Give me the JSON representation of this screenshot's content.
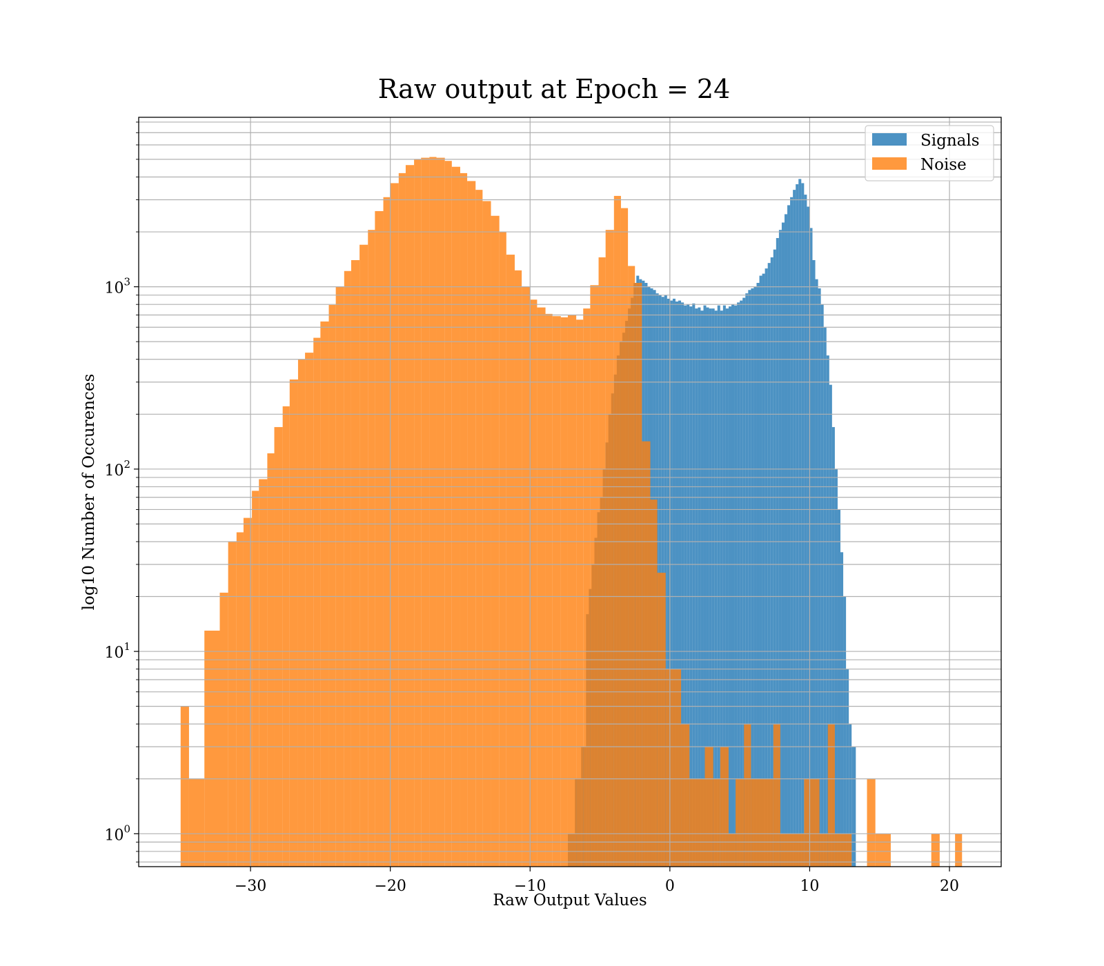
{
  "chart_data": {
    "type": "bar",
    "title": "Raw output at Epoch = 24",
    "xlabel": "Raw Output Values",
    "ylabel": "log10 Number of Occurences",
    "xlim": [
      -38,
      23.7
    ],
    "ylim": [
      0.66,
      8500
    ],
    "yscale": "log",
    "grid": true,
    "legend_position": "top-right",
    "x_ticks": [
      {
        "value": -30,
        "label": "−30"
      },
      {
        "value": -20,
        "label": "−20"
      },
      {
        "value": -10,
        "label": "−10"
      },
      {
        "value": 0,
        "label": "0"
      },
      {
        "value": 10,
        "label": "10"
      },
      {
        "value": 20,
        "label": "20"
      }
    ],
    "y_ticks": [
      {
        "value": 1,
        "base": "10",
        "exp": "0"
      },
      {
        "value": 10,
        "base": "10",
        "exp": "1"
      },
      {
        "value": 100,
        "base": "10",
        "exp": "2"
      },
      {
        "value": 1000,
        "base": "10",
        "exp": "3"
      }
    ],
    "series": [
      {
        "name": "Signals",
        "color": "#1f77b4",
        "alpha": 0.8,
        "bins": [
          [
            -7.3,
            -6.8,
            1
          ],
          [
            -6.8,
            -6.35,
            2
          ],
          [
            -6.35,
            -6.0,
            3
          ],
          [
            -6.0,
            -5.8,
            16
          ],
          [
            -5.8,
            -5.6,
            22
          ],
          [
            -5.6,
            -5.4,
            30
          ],
          [
            -5.4,
            -5.2,
            42
          ],
          [
            -5.2,
            -5.0,
            58
          ],
          [
            -5.0,
            -4.8,
            70
          ],
          [
            -4.8,
            -4.6,
            100
          ],
          [
            -4.6,
            -4.4,
            140
          ],
          [
            -4.4,
            -4.2,
            200
          ],
          [
            -4.2,
            -4.0,
            260
          ],
          [
            -4.0,
            -3.8,
            330
          ],
          [
            -3.8,
            -3.6,
            420
          ],
          [
            -3.6,
            -3.4,
            500
          ],
          [
            -3.4,
            -3.2,
            560
          ],
          [
            -3.2,
            -3.0,
            650
          ],
          [
            -3.0,
            -2.8,
            760
          ],
          [
            -2.8,
            -2.6,
            870
          ],
          [
            -2.6,
            -2.4,
            1050
          ],
          [
            -2.4,
            -2.2,
            1150
          ],
          [
            -2.2,
            -2.0,
            1100
          ],
          [
            -2.0,
            -1.8,
            1080
          ],
          [
            -1.8,
            -1.6,
            1050
          ],
          [
            -1.6,
            -1.4,
            1000
          ],
          [
            -1.4,
            -1.2,
            980
          ],
          [
            -1.2,
            -1.0,
            960
          ],
          [
            -1.0,
            -0.8,
            920
          ],
          [
            -0.8,
            -0.6,
            900
          ],
          [
            -0.6,
            -0.4,
            880
          ],
          [
            -0.4,
            -0.2,
            900
          ],
          [
            -0.2,
            0.0,
            860
          ],
          [
            0.0,
            0.2,
            840
          ],
          [
            0.2,
            0.4,
            860
          ],
          [
            0.4,
            0.6,
            830
          ],
          [
            0.6,
            0.8,
            840
          ],
          [
            0.8,
            1.0,
            820
          ],
          [
            1.0,
            1.2,
            790
          ],
          [
            1.2,
            1.4,
            800
          ],
          [
            1.4,
            1.6,
            780
          ],
          [
            1.6,
            1.8,
            810
          ],
          [
            1.8,
            2.0,
            760
          ],
          [
            2.0,
            2.2,
            770
          ],
          [
            2.2,
            2.4,
            740
          ],
          [
            2.4,
            2.6,
            790
          ],
          [
            2.6,
            2.8,
            770
          ],
          [
            2.8,
            3.0,
            760
          ],
          [
            3.0,
            3.2,
            760
          ],
          [
            3.2,
            3.4,
            740
          ],
          [
            3.4,
            3.6,
            790
          ],
          [
            3.6,
            3.8,
            740
          ],
          [
            3.8,
            4.0,
            790
          ],
          [
            4.0,
            4.2,
            760
          ],
          [
            4.2,
            4.4,
            780
          ],
          [
            4.4,
            4.6,
            800
          ],
          [
            4.6,
            4.8,
            790
          ],
          [
            4.8,
            5.0,
            820
          ],
          [
            5.0,
            5.2,
            840
          ],
          [
            5.2,
            5.4,
            870
          ],
          [
            5.4,
            5.6,
            920
          ],
          [
            5.6,
            5.8,
            960
          ],
          [
            5.8,
            6.0,
            980
          ],
          [
            6.0,
            6.2,
            1000
          ],
          [
            6.2,
            6.4,
            1050
          ],
          [
            6.4,
            6.6,
            1150
          ],
          [
            6.6,
            6.8,
            1180
          ],
          [
            6.8,
            7.0,
            1260
          ],
          [
            7.0,
            7.2,
            1350
          ],
          [
            7.2,
            7.4,
            1450
          ],
          [
            7.4,
            7.6,
            1600
          ],
          [
            7.6,
            7.8,
            1850
          ],
          [
            7.8,
            8.0,
            2050
          ],
          [
            8.0,
            8.2,
            2250
          ],
          [
            8.2,
            8.4,
            2500
          ],
          [
            8.4,
            8.6,
            2800
          ],
          [
            8.6,
            8.8,
            3100
          ],
          [
            8.8,
            9.0,
            3400
          ],
          [
            9.0,
            9.2,
            3650
          ],
          [
            9.2,
            9.4,
            3900
          ],
          [
            9.4,
            9.6,
            3700
          ],
          [
            9.6,
            9.8,
            3200
          ],
          [
            9.8,
            10.0,
            2750
          ],
          [
            10.0,
            10.2,
            2100
          ],
          [
            10.2,
            10.4,
            1400
          ],
          [
            10.4,
            10.6,
            1100
          ],
          [
            10.6,
            10.8,
            980
          ],
          [
            10.8,
            11.0,
            800
          ],
          [
            11.0,
            11.2,
            600
          ],
          [
            11.2,
            11.4,
            420
          ],
          [
            11.4,
            11.6,
            290
          ],
          [
            11.6,
            11.8,
            170
          ],
          [
            11.8,
            12.0,
            100
          ],
          [
            12.0,
            12.2,
            60
          ],
          [
            12.2,
            12.4,
            35
          ],
          [
            12.4,
            12.6,
            20
          ],
          [
            12.6,
            12.8,
            8
          ],
          [
            12.8,
            13.0,
            4
          ],
          [
            13.0,
            13.3,
            3
          ]
        ]
      },
      {
        "name": "Noise",
        "color": "#ff7f0e",
        "alpha": 0.8,
        "bins": [
          [
            -35.0,
            -34.4,
            5
          ],
          [
            -34.4,
            -33.3,
            2
          ],
          [
            -33.3,
            -32.2,
            13
          ],
          [
            -32.2,
            -31.6,
            21
          ],
          [
            -31.6,
            -31.0,
            40
          ],
          [
            -31.0,
            -30.5,
            45
          ],
          [
            -30.5,
            -29.9,
            54
          ],
          [
            -29.9,
            -29.4,
            76
          ],
          [
            -29.4,
            -28.8,
            88
          ],
          [
            -28.8,
            -28.3,
            122
          ],
          [
            -28.3,
            -27.7,
            170
          ],
          [
            -27.7,
            -27.2,
            221
          ],
          [
            -27.2,
            -26.6,
            310
          ],
          [
            -26.6,
            -26.1,
            400
          ],
          [
            -26.1,
            -25.5,
            435
          ],
          [
            -25.5,
            -25.0,
            525
          ],
          [
            -25.0,
            -24.4,
            645
          ],
          [
            -24.4,
            -23.9,
            795
          ],
          [
            -23.9,
            -23.3,
            1000
          ],
          [
            -23.3,
            -22.8,
            1220
          ],
          [
            -22.8,
            -22.2,
            1400
          ],
          [
            -22.2,
            -21.6,
            1700
          ],
          [
            -21.6,
            -21.1,
            2050
          ],
          [
            -21.1,
            -20.5,
            2600
          ],
          [
            -20.5,
            -20.0,
            3100
          ],
          [
            -20.0,
            -19.4,
            3700
          ],
          [
            -19.4,
            -18.9,
            4200
          ],
          [
            -18.9,
            -18.3,
            4650
          ],
          [
            -18.3,
            -17.8,
            5000
          ],
          [
            -17.8,
            -17.2,
            5100
          ],
          [
            -17.2,
            -16.7,
            5150
          ],
          [
            -16.7,
            -16.1,
            5100
          ],
          [
            -16.1,
            -15.6,
            4900
          ],
          [
            -15.6,
            -15.0,
            4550
          ],
          [
            -15.0,
            -14.5,
            4200
          ],
          [
            -14.5,
            -13.9,
            3800
          ],
          [
            -13.9,
            -13.4,
            3400
          ],
          [
            -13.4,
            -12.8,
            2950
          ],
          [
            -12.8,
            -12.2,
            2450
          ],
          [
            -12.2,
            -11.7,
            2000
          ],
          [
            -11.7,
            -11.1,
            1500
          ],
          [
            -11.1,
            -10.6,
            1230
          ],
          [
            -10.6,
            -10.0,
            1000
          ],
          [
            -10.0,
            -9.5,
            850
          ],
          [
            -9.5,
            -8.9,
            770
          ],
          [
            -8.9,
            -8.4,
            710
          ],
          [
            -8.4,
            -7.8,
            690
          ],
          [
            -7.8,
            -7.3,
            680
          ],
          [
            -7.3,
            -6.7,
            700
          ],
          [
            -6.7,
            -6.2,
            660
          ],
          [
            -6.2,
            -5.7,
            760
          ],
          [
            -5.7,
            -5.1,
            1020
          ],
          [
            -5.1,
            -4.6,
            1450
          ],
          [
            -4.6,
            -4.0,
            2050
          ],
          [
            -4.0,
            -3.5,
            3150
          ],
          [
            -3.5,
            -3.0,
            2700
          ],
          [
            -3.0,
            -2.5,
            1300
          ],
          [
            -2.5,
            -2.0,
            1050
          ],
          [
            -2.0,
            -1.4,
            142
          ],
          [
            -1.4,
            -0.9,
            68
          ],
          [
            -0.9,
            -0.3,
            27
          ],
          [
            -0.3,
            0.8,
            8
          ],
          [
            0.8,
            1.4,
            4
          ],
          [
            1.4,
            2.5,
            2
          ],
          [
            2.5,
            3.1,
            3
          ],
          [
            3.1,
            3.6,
            2
          ],
          [
            3.6,
            4.2,
            3
          ],
          [
            4.2,
            4.7,
            1
          ],
          [
            4.7,
            5.3,
            2
          ],
          [
            5.3,
            5.8,
            4
          ],
          [
            5.8,
            6.3,
            2
          ],
          [
            6.3,
            7.4,
            2
          ],
          [
            7.4,
            7.9,
            4
          ],
          [
            7.9,
            9.6,
            1
          ],
          [
            9.6,
            10.7,
            2
          ],
          [
            10.7,
            11.3,
            1
          ],
          [
            11.3,
            11.8,
            4
          ],
          [
            11.8,
            13.0,
            1
          ],
          [
            14.1,
            14.7,
            2
          ],
          [
            14.7,
            15.8,
            1
          ],
          [
            18.7,
            19.3,
            1
          ],
          [
            20.4,
            20.9,
            1
          ]
        ]
      }
    ]
  }
}
